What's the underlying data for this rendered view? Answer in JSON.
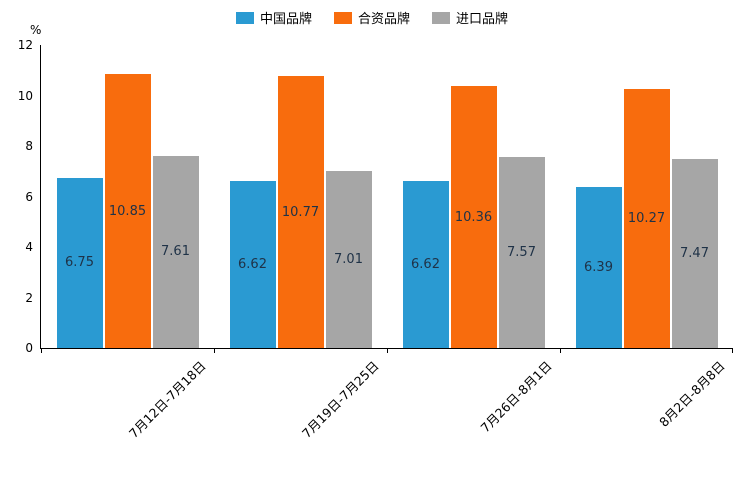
{
  "colors": {
    "series_blue": "#2A9AD2",
    "series_orange": "#F86C0D",
    "series_gray": "#A6A6A6",
    "value_label": "#1F3247",
    "axis": "#000000"
  },
  "chart_data": {
    "type": "bar",
    "title": "",
    "xlabel": "",
    "ylabel": "%",
    "ylim": [
      0,
      12
    ],
    "yticks": [
      0,
      2,
      4,
      6,
      8,
      10,
      12
    ],
    "grid": false,
    "legend_position": "top",
    "categories": [
      "7月12日-7月18日",
      "7月19日-7月25日",
      "7月26日-8月1日",
      "8月2日-8月8日"
    ],
    "series": [
      {
        "name": "中国品牌",
        "color": "#2A9AD2",
        "values": [
          6.75,
          6.62,
          6.62,
          6.39
        ]
      },
      {
        "name": "合资品牌",
        "color": "#F86C0D",
        "values": [
          10.85,
          10.77,
          10.36,
          10.27
        ]
      },
      {
        "name": "进口品牌",
        "color": "#A6A6A6",
        "values": [
          7.61,
          7.01,
          7.57,
          7.47
        ]
      }
    ]
  }
}
